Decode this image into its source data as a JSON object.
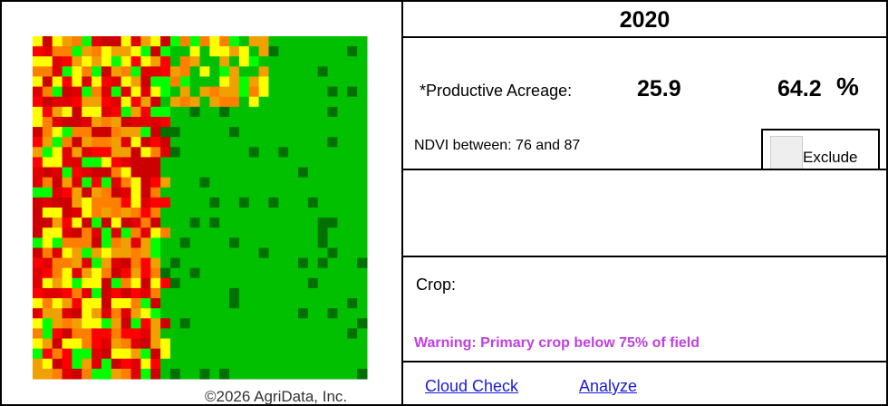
{
  "header": {
    "year": "2020"
  },
  "productive": {
    "label": "*Productive Acreage:",
    "acreage": "25.9",
    "percent": "64.2",
    "percent_unit": "%"
  },
  "ndvi": {
    "text": "NDVI between: 76 and 87",
    "exclude": "Exclude"
  },
  "crop": {
    "label": "Crop:",
    "warning": "Warning: Primary crop below 75% of field"
  },
  "links": [
    "Cloud Check",
    "Analyze"
  ],
  "map": {
    "copyright": "©2026 AgriData, Inc."
  }
}
